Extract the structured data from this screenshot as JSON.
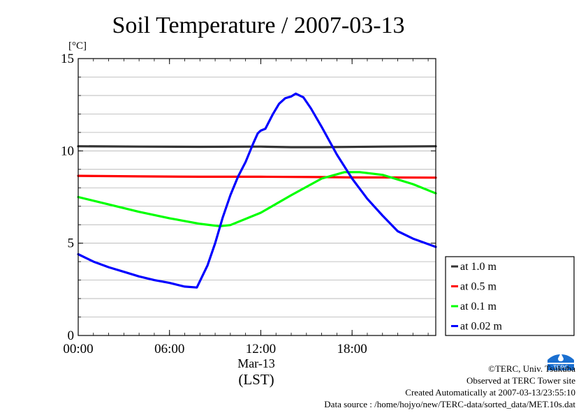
{
  "chart_data": {
    "type": "line",
    "title": "Soil Temperature / 2007-03-13",
    "unit_label": "[°C]",
    "x_ticks": [
      "00:00",
      "06:00",
      "12:00",
      "18:00"
    ],
    "x_date_label": "Mar-13",
    "x_tz_label": "(LST)",
    "x_range_hours": [
      0,
      23.5
    ],
    "y_ticks": [
      "0",
      "5",
      "10",
      "15"
    ],
    "ylim": [
      0,
      15
    ],
    "y_minor_grid_step": 1,
    "grid": true,
    "legend_position": "right",
    "series": [
      {
        "name": "at 1.0 m",
        "color": "#333333",
        "x": [
          0,
          4,
          8,
          12,
          14,
          16,
          20,
          23.5
        ],
        "y": [
          10.25,
          10.23,
          10.22,
          10.23,
          10.2,
          10.2,
          10.23,
          10.25
        ]
      },
      {
        "name": "at 0.5 m",
        "color": "#ff0000",
        "x": [
          0,
          4,
          8,
          12,
          16,
          18,
          20,
          23.5
        ],
        "y": [
          8.65,
          8.62,
          8.6,
          8.6,
          8.58,
          8.56,
          8.56,
          8.55
        ]
      },
      {
        "name": "at 0.1 m",
        "color": "#00ff00",
        "x": [
          0,
          2,
          4,
          6,
          8,
          9.3,
          10,
          12,
          14,
          16,
          17.5,
          18.5,
          20,
          22,
          23.5
        ],
        "y": [
          7.5,
          7.1,
          6.7,
          6.35,
          6.05,
          5.92,
          5.98,
          6.65,
          7.6,
          8.5,
          8.85,
          8.85,
          8.7,
          8.2,
          7.7
        ]
      },
      {
        "name": "at 0.02 m",
        "color": "#0000ff",
        "x": [
          0,
          1,
          2,
          3,
          4,
          5,
          6,
          7,
          7.8,
          8.5,
          9,
          9.5,
          10,
          10.5,
          11,
          11.5,
          11.8,
          12,
          12.3,
          12.8,
          13.2,
          13.6,
          14,
          14.3,
          14.8,
          15.3,
          16,
          17,
          18,
          19,
          20,
          21,
          22,
          23,
          23.5
        ],
        "y": [
          4.4,
          4.0,
          3.7,
          3.45,
          3.2,
          3.0,
          2.85,
          2.65,
          2.6,
          3.8,
          5.0,
          6.4,
          7.6,
          8.6,
          9.4,
          10.4,
          10.95,
          11.1,
          11.2,
          12.0,
          12.55,
          12.85,
          12.95,
          13.1,
          12.9,
          12.3,
          11.3,
          9.8,
          8.5,
          7.4,
          6.5,
          5.65,
          5.25,
          4.95,
          4.8
        ]
      }
    ]
  },
  "credits": {
    "copyright": "©TERC, Univ. Tsukuba",
    "observed": "Observed at TERC Tower site",
    "created": "Created Automatically at 2007-03-13/23:55:10",
    "source": "Data source : /home/hojyo/new/TERC-data/sorted_data/MET.10s.dat"
  },
  "logo": {
    "text": "TERC",
    "color": "#1a6fd0"
  }
}
